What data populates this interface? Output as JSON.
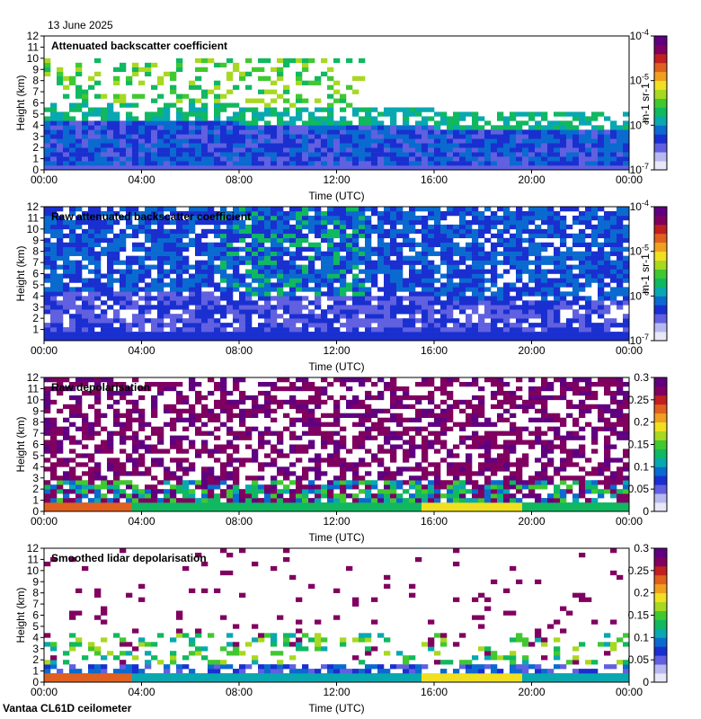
{
  "page": {
    "date": "13 June 2025",
    "footer": "Vantaa CL61D ceilometer"
  },
  "colors": {
    "colormap": [
      "#e8e8f8",
      "#b8b8f0",
      "#6060e0",
      "#1a2fd0",
      "#0a6ad0",
      "#08a8b0",
      "#10b860",
      "#40c830",
      "#a8d820",
      "#f0e020",
      "#f0a020",
      "#e06020",
      "#c02020",
      "#800060",
      "#600080"
    ]
  },
  "chart_data": [
    {
      "type": "heatmap",
      "title": "Attenuated backscatter coefficient",
      "xlabel": "Time (UTC)",
      "ylabel": "Height (km)",
      "x_ticks": [
        "00:00",
        "04:00",
        "08:00",
        "12:00",
        "16:00",
        "20:00",
        "00:00"
      ],
      "y_ticks": [
        "0",
        "1",
        "2",
        "3",
        "4",
        "5",
        "6",
        "7",
        "8",
        "9",
        "10",
        "11",
        "12"
      ],
      "ylim": [
        0,
        12
      ],
      "colorbar": {
        "scale": "log",
        "range": [
          1e-07,
          0.0001
        ],
        "ticks": [
          "10-7",
          "10-6",
          "10-5",
          "10-4"
        ],
        "unit": "m-1 sr-1"
      }
    },
    {
      "type": "heatmap",
      "title": "Raw attenuated backscatter coefficient",
      "xlabel": "Time (UTC)",
      "ylabel": "Height (km)",
      "x_ticks": [
        "00:00",
        "04:00",
        "08:00",
        "12:00",
        "16:00",
        "20:00",
        "00:00"
      ],
      "y_ticks": [
        "1",
        "2",
        "3",
        "4",
        "5",
        "6",
        "7",
        "8",
        "9",
        "10",
        "11",
        "12"
      ],
      "ylim": [
        0,
        12
      ],
      "colorbar": {
        "scale": "log",
        "range": [
          1e-07,
          0.0001
        ],
        "ticks": [
          "10-7",
          "10-6",
          "10-5",
          "10-4"
        ],
        "unit": "m-1 sr-1"
      }
    },
    {
      "type": "heatmap",
      "title": "Raw depolarisation",
      "xlabel": "Time (UTC)",
      "ylabel": "Height (km)",
      "x_ticks": [
        "00:00",
        "04:00",
        "08:00",
        "12:00",
        "16:00",
        "20:00",
        "00:00"
      ],
      "y_ticks": [
        "0",
        "1",
        "2",
        "3",
        "4",
        "5",
        "6",
        "7",
        "8",
        "9",
        "10",
        "11",
        "12"
      ],
      "ylim": [
        0,
        12
      ],
      "colorbar": {
        "scale": "linear",
        "range": [
          0,
          0.3
        ],
        "ticks": [
          "0",
          "0.05",
          "0.1",
          "0.15",
          "0.2",
          "0.25",
          "0.3"
        ],
        "unit": ""
      }
    },
    {
      "type": "heatmap",
      "title": "Smoothed lidar depolarisation",
      "xlabel": "Time (UTC)",
      "ylabel": "Height (km)",
      "x_ticks": [
        "00:00",
        "04:00",
        "08:00",
        "12:00",
        "16:00",
        "20:00",
        "00:00"
      ],
      "y_ticks": [
        "0",
        "1",
        "2",
        "3",
        "4",
        "5",
        "6",
        "7",
        "8",
        "9",
        "10",
        "11",
        "12"
      ],
      "ylim": [
        0,
        12
      ],
      "colorbar": {
        "scale": "linear",
        "range": [
          0,
          0.3
        ],
        "ticks": [
          "0",
          "0.05",
          "0.1",
          "0.15",
          "0.2",
          "0.25",
          "0.3"
        ],
        "unit": ""
      }
    }
  ]
}
